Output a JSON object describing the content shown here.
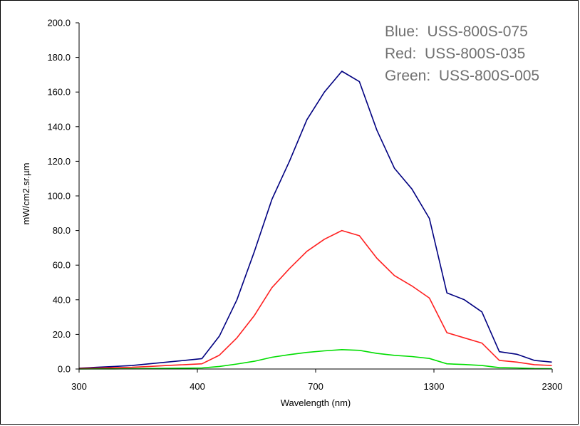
{
  "chart_data": {
    "type": "line",
    "title": "",
    "xlabel": "Wavelength (nm)",
    "ylabel": "mW/cm2.sr.µm",
    "ylim": [
      0,
      200
    ],
    "yticks": [
      "0.0",
      "20.0",
      "40.0",
      "60.0",
      "80.0",
      "100.0",
      "120.0",
      "140.0",
      "160.0",
      "180.0",
      "200.0"
    ],
    "xticks": [
      "300",
      "400",
      "700",
      "1300",
      "2300"
    ],
    "grid": false,
    "legend_notes": [
      "Blue:  USS-800S-075",
      "Red:  USS-800S-035",
      "Green:  USS-800S-005"
    ],
    "series": [
      {
        "color": "#000080",
        "values": [
          0.5,
          1.0,
          1.5,
          2.0,
          3.0,
          4.0,
          5.0,
          6.0,
          19.0,
          40.0,
          68.0,
          98.0,
          120.0,
          144.0,
          160.0,
          172.0,
          166.0,
          138.0,
          116.0,
          104.0,
          87.0,
          44.0,
          40.0,
          33.0,
          10.0,
          8.5,
          5.0,
          4.0
        ]
      },
      {
        "color": "#ff2020",
        "values": [
          0.3,
          0.5,
          0.8,
          1.0,
          1.5,
          2.0,
          2.5,
          3.0,
          8.0,
          18.0,
          31.0,
          47.0,
          58.0,
          68.0,
          75.0,
          80.0,
          77.0,
          64.0,
          54.0,
          48.0,
          41.0,
          21.0,
          18.0,
          15.0,
          5.0,
          4.0,
          2.5,
          2.0
        ]
      },
      {
        "color": "#00dd00",
        "values": [
          0.0,
          0.1,
          0.1,
          0.2,
          0.3,
          0.4,
          0.5,
          0.6,
          1.5,
          2.9,
          4.5,
          6.8,
          8.3,
          9.6,
          10.5,
          11.2,
          10.8,
          9.0,
          7.9,
          7.2,
          6.1,
          3.0,
          2.6,
          2.0,
          0.8,
          0.6,
          0.3,
          0.2
        ]
      }
    ]
  }
}
